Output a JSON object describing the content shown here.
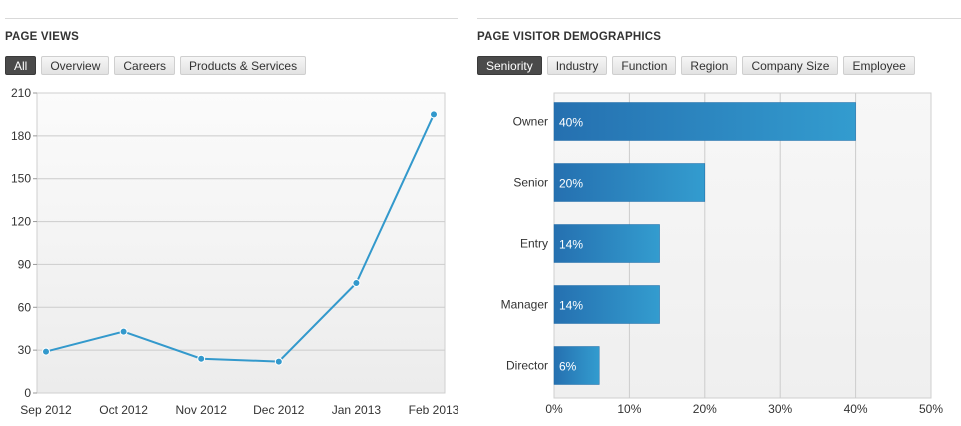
{
  "page_views": {
    "title": "PAGE VIEWS",
    "tabs": [
      {
        "label": "All",
        "active": true
      },
      {
        "label": "Overview",
        "active": false
      },
      {
        "label": "Careers",
        "active": false
      },
      {
        "label": "Products & Services",
        "active": false
      }
    ]
  },
  "demographics": {
    "title": "PAGE VISITOR DEMOGRAPHICS",
    "tabs": [
      {
        "label": "Seniority",
        "active": true
      },
      {
        "label": "Industry",
        "active": false
      },
      {
        "label": "Function",
        "active": false
      },
      {
        "label": "Region",
        "active": false
      },
      {
        "label": "Company Size",
        "active": false
      },
      {
        "label": "Employee",
        "active": false
      }
    ]
  },
  "chart_data": [
    {
      "type": "line",
      "title": "PAGE VIEWS",
      "x": [
        "Sep 2012",
        "Oct 2012",
        "Nov 2012",
        "Dec 2012",
        "Jan 2013",
        "Feb 2013"
      ],
      "series": [
        {
          "values": [
            29,
            43,
            24,
            22,
            77,
            195
          ],
          "color": "#3399cc"
        }
      ],
      "yticks": [
        0,
        30,
        60,
        90,
        120,
        150,
        180,
        210
      ],
      "ylim": [
        0,
        210
      ],
      "grid": true
    },
    {
      "type": "bar",
      "orientation": "horizontal",
      "title": "PAGE VISITOR DEMOGRAPHICS",
      "categories": [
        "Owner",
        "Senior",
        "Entry",
        "Manager",
        "Director"
      ],
      "values": [
        40,
        20,
        14,
        14,
        6
      ],
      "data_labels": [
        "40%",
        "20%",
        "14%",
        "14%",
        "6%"
      ],
      "xticks": [
        "0%",
        "10%",
        "20%",
        "30%",
        "40%",
        "50%"
      ],
      "xlim": [
        0,
        50
      ],
      "grid": true,
      "color": "#2a7fbf"
    }
  ]
}
